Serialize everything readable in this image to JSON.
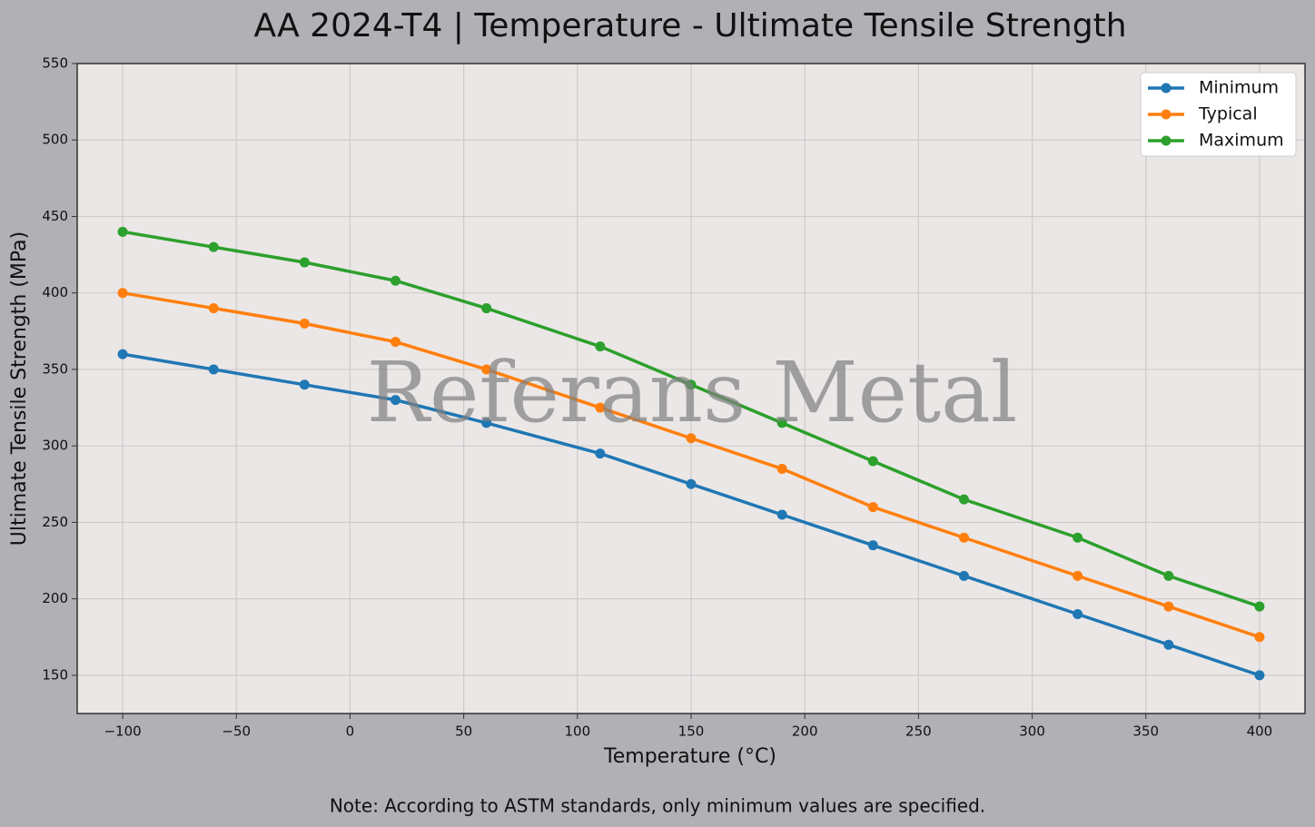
{
  "chart_data": {
    "type": "line",
    "title": "AA 2024-T4 | Temperature - Ultimate Tensile Strength",
    "x_label": "Temperature (°C)",
    "y_label": "Ultimate Tensile Strength (MPa)",
    "watermark": "Referans Metal",
    "note": "Note: According to ASTM standards, only minimum values are specified.",
    "x": [
      -100,
      -60,
      -20,
      20,
      60,
      110,
      150,
      190,
      230,
      270,
      320,
      360,
      400
    ],
    "series": [
      {
        "name": "Minimum",
        "color": "#1f77b4",
        "values": [
          360,
          350,
          340,
          330,
          315,
          295,
          275,
          255,
          235,
          215,
          190,
          170,
          150
        ]
      },
      {
        "name": "Typical",
        "color": "#ff7f0e",
        "values": [
          400,
          390,
          380,
          368,
          350,
          325,
          305,
          285,
          260,
          240,
          215,
          195,
          175
        ]
      },
      {
        "name": "Maximum",
        "color": "#2ca02c",
        "values": [
          440,
          430,
          420,
          408,
          390,
          365,
          340,
          315,
          290,
          265,
          240,
          215,
          195
        ]
      }
    ],
    "xlim": [
      -120,
      420
    ],
    "ylim": [
      125,
      550
    ],
    "xticks": [
      {
        "value": -100,
        "label": "−100"
      },
      {
        "value": -50,
        "label": "−50"
      },
      0,
      50,
      100,
      150,
      200,
      250,
      300,
      350,
      400
    ],
    "yticks": [
      150,
      200,
      250,
      300,
      350,
      400,
      450,
      500,
      550
    ],
    "grid": true,
    "legend": "upper right"
  }
}
